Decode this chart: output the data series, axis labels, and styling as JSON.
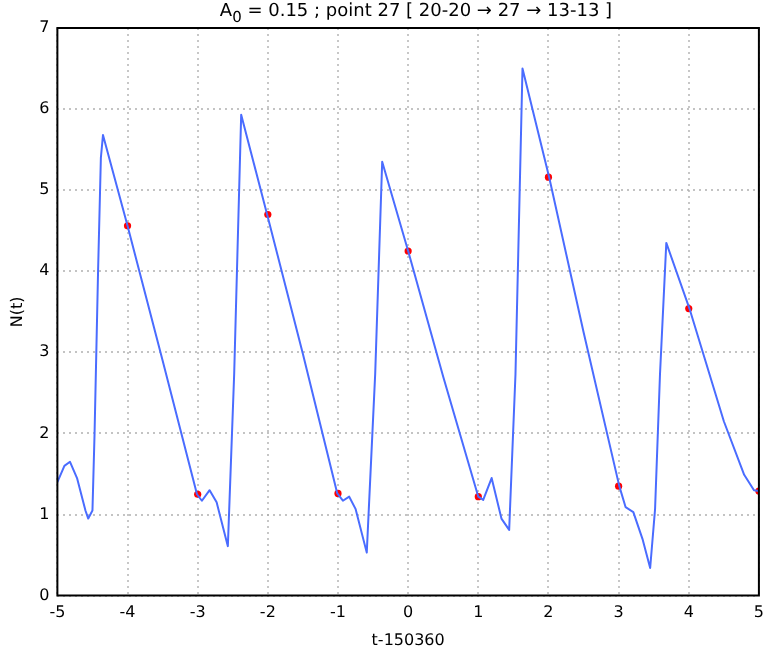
{
  "chart_data": {
    "type": "line",
    "title": "A$_{0}$ = 0.15 ; point 27 [ 20-20 → 27 → 13-13 ]",
    "xlabel": "t-150360",
    "ylabel": "N(t)",
    "xlim": [
      -5,
      5
    ],
    "xticks": [
      -5,
      -4,
      -3,
      -2,
      -1,
      0,
      1,
      2,
      3,
      4,
      5
    ],
    "ylim": [
      0,
      7
    ],
    "yticks": [
      0,
      1,
      2,
      3,
      4,
      5,
      6,
      7
    ],
    "grid": true,
    "legend": false,
    "series": [
      {
        "color": "#4a6cff",
        "x": [
          -5,
          -4.9,
          -4.82,
          -4.72,
          -4.6,
          -4.56,
          -4.5,
          -4.47,
          -4.42,
          -4.38,
          -4.35,
          -4,
          -3.5,
          -3.01,
          -2.94,
          -2.83,
          -2.73,
          -2.57,
          -2.48,
          -2.38,
          -2.01,
          -1.5,
          -1.01,
          -0.93,
          -0.84,
          -0.75,
          -0.59,
          -0.47,
          -0.37,
          0,
          0.5,
          1.0,
          1.07,
          1.19,
          1.33,
          1.44,
          1.53,
          1.63,
          2.01,
          2.5,
          3.01,
          3.1,
          3.21,
          3.34,
          3.45,
          3.52,
          3.59,
          3.68,
          4.01,
          4.5,
          4.79,
          4.93,
          5
        ],
        "values": [
          1.4,
          1.6,
          1.65,
          1.45,
          1.05,
          0.95,
          1.05,
          2.0,
          4.0,
          5.4,
          5.68,
          4.56,
          2.9,
          1.25,
          1.17,
          1.3,
          1.15,
          0.61,
          2.73,
          5.93,
          4.7,
          2.98,
          1.26,
          1.17,
          1.22,
          1.07,
          0.53,
          2.73,
          5.35,
          4.25,
          2.7,
          1.22,
          1.18,
          1.45,
          0.95,
          0.81,
          2.73,
          6.5,
          5.16,
          3.25,
          1.35,
          1.09,
          1.03,
          0.7,
          0.34,
          1.07,
          2.73,
          4.35,
          3.54,
          2.15,
          1.49,
          1.3,
          1.29
        ]
      },
      {
        "type": "scatter",
        "color": "#ff0000",
        "x": [
          -4,
          -3,
          -2,
          -1,
          0,
          1,
          2,
          3,
          4,
          5
        ],
        "values": [
          4.56,
          1.25,
          4.7,
          1.26,
          4.25,
          1.22,
          5.16,
          1.35,
          3.54,
          1.29
        ]
      }
    ]
  }
}
